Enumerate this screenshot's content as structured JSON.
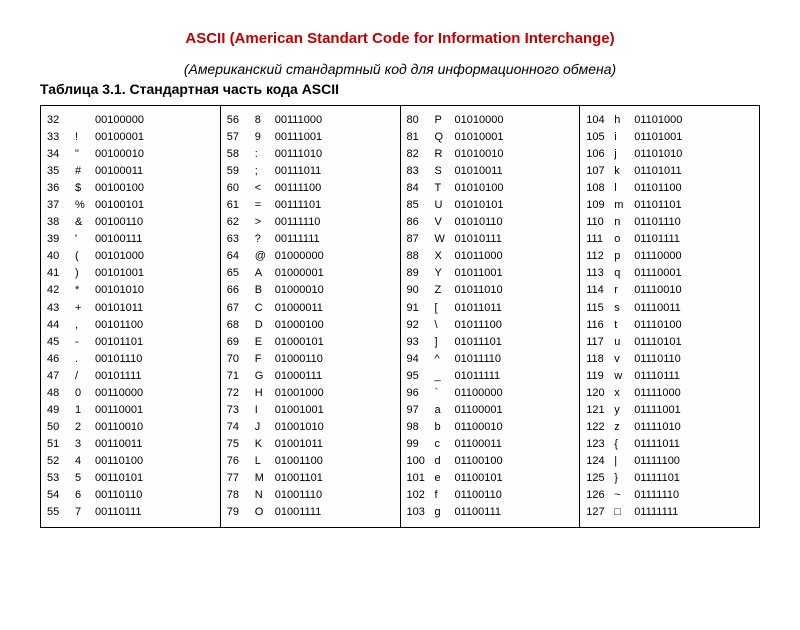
{
  "title": "ASCII (American Standart Code for Information Interchange)",
  "subtitle": "(Американский стандартный код для информационного обмена)",
  "caption": "Таблица 3.1. Стандартная часть кода ASCII",
  "colors": {
    "title": "#c00000",
    "text": "#000000",
    "border": "#000000",
    "bg": "#ffffff"
  },
  "font": {
    "title_size": 15,
    "subtitle_size": 14,
    "caption_size": 14,
    "cell_size": 11
  },
  "columns": [
    {
      "rows": [
        {
          "dec": "32",
          "ch": "",
          "bin": "00100000"
        },
        {
          "dec": "33",
          "ch": "!",
          "bin": "00100001"
        },
        {
          "dec": "34",
          "ch": "\"",
          "bin": "00100010"
        },
        {
          "dec": "35",
          "ch": "#",
          "bin": "00100011"
        },
        {
          "dec": "36",
          "ch": "$",
          "bin": "00100100"
        },
        {
          "dec": "37",
          "ch": "%",
          "bin": "00100101"
        },
        {
          "dec": "38",
          "ch": "&",
          "bin": "00100110"
        },
        {
          "dec": "39",
          "ch": "'",
          "bin": "00100111"
        },
        {
          "dec": "40",
          "ch": "(",
          "bin": "00101000"
        },
        {
          "dec": "41",
          "ch": ")",
          "bin": "00101001"
        },
        {
          "dec": "42",
          "ch": "*",
          "bin": "00101010"
        },
        {
          "dec": "43",
          "ch": "+",
          "bin": "00101011"
        },
        {
          "dec": "44",
          "ch": ",",
          "bin": "00101100"
        },
        {
          "dec": "45",
          "ch": "-",
          "bin": "00101101"
        },
        {
          "dec": "46",
          "ch": ".",
          "bin": "00101110"
        },
        {
          "dec": "47",
          "ch": "/",
          "bin": "00101111"
        },
        {
          "dec": "48",
          "ch": "0",
          "bin": "00110000"
        },
        {
          "dec": "49",
          "ch": "1",
          "bin": "00110001"
        },
        {
          "dec": "50",
          "ch": "2",
          "bin": "00110010"
        },
        {
          "dec": "51",
          "ch": "3",
          "bin": "00110011"
        },
        {
          "dec": "52",
          "ch": "4",
          "bin": "00110100"
        },
        {
          "dec": "53",
          "ch": "5",
          "bin": "00110101"
        },
        {
          "dec": "54",
          "ch": "6",
          "bin": "00110110"
        },
        {
          "dec": "55",
          "ch": "7",
          "bin": "00110111"
        }
      ]
    },
    {
      "rows": [
        {
          "dec": "56",
          "ch": "8",
          "bin": "00111000"
        },
        {
          "dec": "57",
          "ch": "9",
          "bin": "00111001"
        },
        {
          "dec": "58",
          "ch": ":",
          "bin": "00111010"
        },
        {
          "dec": "59",
          "ch": ";",
          "bin": "00111011"
        },
        {
          "dec": "60",
          "ch": "<",
          "bin": "00111100"
        },
        {
          "dec": "61",
          "ch": "=",
          "bin": "00111101"
        },
        {
          "dec": "62",
          "ch": ">",
          "bin": "00111110"
        },
        {
          "dec": "63",
          "ch": "?",
          "bin": "00111111"
        },
        {
          "dec": "64",
          "ch": "@",
          "bin": "01000000"
        },
        {
          "dec": "65",
          "ch": "A",
          "bin": "01000001"
        },
        {
          "dec": "66",
          "ch": "B",
          "bin": "01000010"
        },
        {
          "dec": "67",
          "ch": "C",
          "bin": "01000011"
        },
        {
          "dec": "68",
          "ch": "D",
          "bin": "01000100"
        },
        {
          "dec": "69",
          "ch": "E",
          "bin": "01000101"
        },
        {
          "dec": "70",
          "ch": "F",
          "bin": "01000110"
        },
        {
          "dec": "71",
          "ch": "G",
          "bin": "01000111"
        },
        {
          "dec": "72",
          "ch": "H",
          "bin": "01001000"
        },
        {
          "dec": "73",
          "ch": "I",
          "bin": "01001001"
        },
        {
          "dec": "74",
          "ch": "J",
          "bin": "01001010"
        },
        {
          "dec": "75",
          "ch": "K",
          "bin": "01001011"
        },
        {
          "dec": "76",
          "ch": "L",
          "bin": "01001100"
        },
        {
          "dec": "77",
          "ch": "M",
          "bin": "01001101"
        },
        {
          "dec": "78",
          "ch": "N",
          "bin": "01001110"
        },
        {
          "dec": "79",
          "ch": "O",
          "bin": "01001111"
        }
      ]
    },
    {
      "rows": [
        {
          "dec": "80",
          "ch": "P",
          "bin": "01010000"
        },
        {
          "dec": "81",
          "ch": "Q",
          "bin": "01010001"
        },
        {
          "dec": "82",
          "ch": "R",
          "bin": "01010010"
        },
        {
          "dec": "83",
          "ch": "S",
          "bin": "01010011"
        },
        {
          "dec": "84",
          "ch": "T",
          "bin": "01010100"
        },
        {
          "dec": "85",
          "ch": "U",
          "bin": "01010101"
        },
        {
          "dec": "86",
          "ch": "V",
          "bin": "01010110"
        },
        {
          "dec": "87",
          "ch": "W",
          "bin": "01010111"
        },
        {
          "dec": "88",
          "ch": "X",
          "bin": "01011000"
        },
        {
          "dec": "89",
          "ch": "Y",
          "bin": "01011001"
        },
        {
          "dec": "90",
          "ch": "Z",
          "bin": "01011010"
        },
        {
          "dec": "91",
          "ch": "[",
          "bin": "01011011"
        },
        {
          "dec": "92",
          "ch": "\\",
          "bin": "01011100"
        },
        {
          "dec": "93",
          "ch": "]",
          "bin": "01011101"
        },
        {
          "dec": "94",
          "ch": "^",
          "bin": "01011110"
        },
        {
          "dec": "95",
          "ch": "_",
          "bin": "01011111"
        },
        {
          "dec": "96",
          "ch": "`",
          "bin": "01100000"
        },
        {
          "dec": "97",
          "ch": "a",
          "bin": "01100001"
        },
        {
          "dec": "98",
          "ch": "b",
          "bin": "01100010"
        },
        {
          "dec": "99",
          "ch": "c",
          "bin": "01100011"
        },
        {
          "dec": "100",
          "ch": "d",
          "bin": "01100100"
        },
        {
          "dec": "101",
          "ch": "e",
          "bin": "01100101"
        },
        {
          "dec": "102",
          "ch": "f",
          "bin": "01100110"
        },
        {
          "dec": "103",
          "ch": "g",
          "bin": "01100111"
        }
      ]
    },
    {
      "rows": [
        {
          "dec": "104",
          "ch": "h",
          "bin": "01101000"
        },
        {
          "dec": "105",
          "ch": "i",
          "bin": "01101001"
        },
        {
          "dec": "106",
          "ch": "j",
          "bin": "01101010"
        },
        {
          "dec": "107",
          "ch": "k",
          "bin": "01101011"
        },
        {
          "dec": "108",
          "ch": "l",
          "bin": "01101100"
        },
        {
          "dec": "109",
          "ch": "m",
          "bin": "01101101"
        },
        {
          "dec": "110",
          "ch": "n",
          "bin": "01101110"
        },
        {
          "dec": "111",
          "ch": "o",
          "bin": "01101111"
        },
        {
          "dec": "112",
          "ch": "p",
          "bin": "01110000"
        },
        {
          "dec": "113",
          "ch": "q",
          "bin": "01110001"
        },
        {
          "dec": "114",
          "ch": "r",
          "bin": "01110010"
        },
        {
          "dec": "115",
          "ch": "s",
          "bin": "01110011"
        },
        {
          "dec": "116",
          "ch": "t",
          "bin": "01110100"
        },
        {
          "dec": "117",
          "ch": "u",
          "bin": "01110101"
        },
        {
          "dec": "118",
          "ch": "v",
          "bin": "01110110"
        },
        {
          "dec": "119",
          "ch": "w",
          "bin": "01110111"
        },
        {
          "dec": "120",
          "ch": "x",
          "bin": "01111000"
        },
        {
          "dec": "121",
          "ch": "y",
          "bin": "01111001"
        },
        {
          "dec": "122",
          "ch": "z",
          "bin": "01111010"
        },
        {
          "dec": "123",
          "ch": "{",
          "bin": "01111011"
        },
        {
          "dec": "124",
          "ch": "|",
          "bin": "01111100"
        },
        {
          "dec": "125",
          "ch": "}",
          "bin": "01111101"
        },
        {
          "dec": "126",
          "ch": "~",
          "bin": "01111110"
        },
        {
          "dec": "127",
          "ch": "□",
          "bin": "01111111"
        }
      ]
    }
  ]
}
